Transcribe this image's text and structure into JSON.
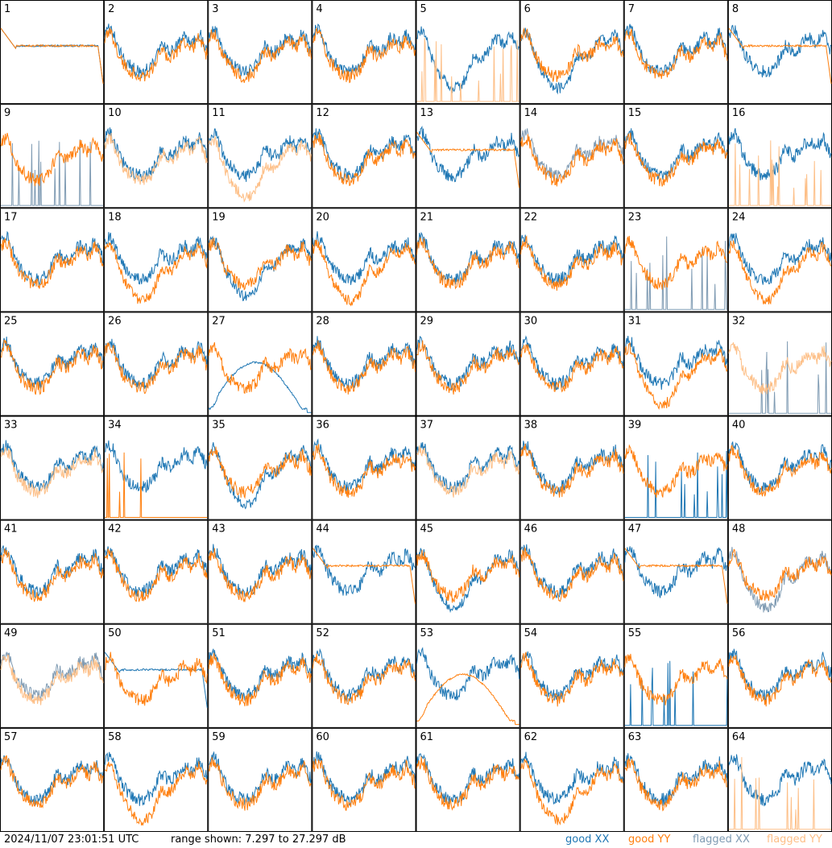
{
  "chart_data": {
    "type": "line",
    "grid": {
      "rows": 8,
      "cols": 8
    },
    "x_range": [
      0,
      1
    ],
    "y_range_db": [
      7.297,
      27.297
    ],
    "colors": {
      "good_xx": "#1f77b4",
      "good_yy": "#ff7f0e",
      "flagged_xx": "#7f9bb3",
      "flagged_yy": "#fdbf87"
    },
    "legend": [
      "good XX",
      "good YY",
      "flagged XX",
      "flagged YY"
    ],
    "panels": [
      {
        "label": "1",
        "xx": "good",
        "yy": "good",
        "xx_shape": "flat",
        "yy_shape": "flat"
      },
      {
        "label": "2",
        "xx": "good",
        "yy": "good",
        "xx_shape": "normal",
        "yy_shape": "normal"
      },
      {
        "label": "3",
        "xx": "good",
        "yy": "good",
        "xx_shape": "normal",
        "yy_shape": "normal"
      },
      {
        "label": "4",
        "xx": "good",
        "yy": "good",
        "xx_shape": "normal",
        "yy_shape": "normal"
      },
      {
        "label": "5",
        "xx": "good",
        "yy": "flagged",
        "xx_shape": "dip",
        "yy_shape": "spikes"
      },
      {
        "label": "6",
        "xx": "good",
        "yy": "good",
        "xx_shape": "dip",
        "yy_shape": "normal"
      },
      {
        "label": "7",
        "xx": "good",
        "yy": "good",
        "xx_shape": "normal",
        "yy_shape": "normal"
      },
      {
        "label": "8",
        "xx": "good",
        "yy": "good",
        "xx_shape": "normal",
        "yy_shape": "flat"
      },
      {
        "label": "9",
        "xx": "flagged",
        "yy": "good",
        "xx_shape": "spikes",
        "yy_shape": "normal"
      },
      {
        "label": "10",
        "xx": "good",
        "yy": "flagged",
        "xx_shape": "normal",
        "yy_shape": "normal"
      },
      {
        "label": "11",
        "xx": "good",
        "yy": "flagged",
        "xx_shape": "normal",
        "yy_shape": "dip"
      },
      {
        "label": "12",
        "xx": "good",
        "yy": "good",
        "xx_shape": "normal",
        "yy_shape": "normal"
      },
      {
        "label": "13",
        "xx": "good",
        "yy": "good",
        "xx_shape": "normal",
        "yy_shape": "flat"
      },
      {
        "label": "14",
        "xx": "flagged",
        "yy": "good",
        "xx_shape": "normal",
        "yy_shape": "normal"
      },
      {
        "label": "15",
        "xx": "good",
        "yy": "good",
        "xx_shape": "normal",
        "yy_shape": "normal"
      },
      {
        "label": "16",
        "xx": "good",
        "yy": "flagged",
        "xx_shape": "normal",
        "yy_shape": "spikes"
      },
      {
        "label": "17",
        "xx": "good",
        "yy": "good",
        "xx_shape": "normal",
        "yy_shape": "normal"
      },
      {
        "label": "18",
        "xx": "good",
        "yy": "good",
        "xx_shape": "normal",
        "yy_shape": "dip"
      },
      {
        "label": "19",
        "xx": "good",
        "yy": "good",
        "xx_shape": "dip",
        "yy_shape": "normal"
      },
      {
        "label": "20",
        "xx": "good",
        "yy": "good",
        "xx_shape": "normal",
        "yy_shape": "dip"
      },
      {
        "label": "21",
        "xx": "good",
        "yy": "good",
        "xx_shape": "normal",
        "yy_shape": "normal"
      },
      {
        "label": "22",
        "xx": "good",
        "yy": "good",
        "xx_shape": "normal",
        "yy_shape": "normal"
      },
      {
        "label": "23",
        "xx": "flagged",
        "yy": "good",
        "xx_shape": "spikes",
        "yy_shape": "normal"
      },
      {
        "label": "24",
        "xx": "good",
        "yy": "good",
        "xx_shape": "normal",
        "yy_shape": "dip"
      },
      {
        "label": "25",
        "xx": "good",
        "yy": "good",
        "xx_shape": "normal",
        "yy_shape": "normal"
      },
      {
        "label": "26",
        "xx": "good",
        "yy": "good",
        "xx_shape": "normal",
        "yy_shape": "normal"
      },
      {
        "label": "27",
        "xx": "good",
        "yy": "good",
        "xx_shape": "hump",
        "yy_shape": "normal"
      },
      {
        "label": "28",
        "xx": "good",
        "yy": "good",
        "xx_shape": "normal",
        "yy_shape": "normal"
      },
      {
        "label": "29",
        "xx": "good",
        "yy": "good",
        "xx_shape": "normal",
        "yy_shape": "normal"
      },
      {
        "label": "30",
        "xx": "good",
        "yy": "good",
        "xx_shape": "normal",
        "yy_shape": "normal"
      },
      {
        "label": "31",
        "xx": "good",
        "yy": "good",
        "xx_shape": "normal",
        "yy_shape": "dip"
      },
      {
        "label": "32",
        "xx": "flagged",
        "yy": "flagged",
        "xx_shape": "spikes",
        "yy_shape": "normal"
      },
      {
        "label": "33",
        "xx": "good",
        "yy": "flagged",
        "xx_shape": "normal",
        "yy_shape": "normal"
      },
      {
        "label": "34",
        "xx": "good",
        "yy": "good",
        "xx_shape": "normal",
        "yy_shape": "spikes"
      },
      {
        "label": "35",
        "xx": "good",
        "yy": "good",
        "xx_shape": "dip",
        "yy_shape": "normal"
      },
      {
        "label": "36",
        "xx": "good",
        "yy": "good",
        "xx_shape": "normal",
        "yy_shape": "normal"
      },
      {
        "label": "37",
        "xx": "good",
        "yy": "flagged",
        "xx_shape": "normal",
        "yy_shape": "normal"
      },
      {
        "label": "38",
        "xx": "good",
        "yy": "good",
        "xx_shape": "normal",
        "yy_shape": "normal"
      },
      {
        "label": "39",
        "xx": "good",
        "yy": "good",
        "xx_shape": "spikes",
        "yy_shape": "normal"
      },
      {
        "label": "40",
        "xx": "good",
        "yy": "good",
        "xx_shape": "normal",
        "yy_shape": "normal"
      },
      {
        "label": "41",
        "xx": "good",
        "yy": "good",
        "xx_shape": "normal",
        "yy_shape": "normal"
      },
      {
        "label": "42",
        "xx": "good",
        "yy": "good",
        "xx_shape": "normal",
        "yy_shape": "normal"
      },
      {
        "label": "43",
        "xx": "good",
        "yy": "good",
        "xx_shape": "normal",
        "yy_shape": "normal"
      },
      {
        "label": "44",
        "xx": "good",
        "yy": "good",
        "xx_shape": "normal",
        "yy_shape": "flat"
      },
      {
        "label": "45",
        "xx": "good",
        "yy": "good",
        "xx_shape": "dip",
        "yy_shape": "normal"
      },
      {
        "label": "46",
        "xx": "good",
        "yy": "good",
        "xx_shape": "normal",
        "yy_shape": "normal"
      },
      {
        "label": "47",
        "xx": "good",
        "yy": "good",
        "xx_shape": "normal",
        "yy_shape": "flat"
      },
      {
        "label": "48",
        "xx": "flagged",
        "yy": "good",
        "xx_shape": "dip",
        "yy_shape": "normal"
      },
      {
        "label": "49",
        "xx": "flagged",
        "yy": "flagged",
        "xx_shape": "normal",
        "yy_shape": "normal"
      },
      {
        "label": "50",
        "xx": "good",
        "yy": "good",
        "xx_shape": "flat",
        "yy_shape": "normal"
      },
      {
        "label": "51",
        "xx": "good",
        "yy": "good",
        "xx_shape": "normal",
        "yy_shape": "normal"
      },
      {
        "label": "52",
        "xx": "good",
        "yy": "good",
        "xx_shape": "normal",
        "yy_shape": "normal"
      },
      {
        "label": "53",
        "xx": "good",
        "yy": "good",
        "xx_shape": "normal",
        "yy_shape": "hump"
      },
      {
        "label": "54",
        "xx": "good",
        "yy": "good",
        "xx_shape": "normal",
        "yy_shape": "normal"
      },
      {
        "label": "55",
        "xx": "good",
        "yy": "good",
        "xx_shape": "spikes",
        "yy_shape": "normal"
      },
      {
        "label": "56",
        "xx": "good",
        "yy": "good",
        "xx_shape": "normal",
        "yy_shape": "normal"
      },
      {
        "label": "57",
        "xx": "good",
        "yy": "good",
        "xx_shape": "normal",
        "yy_shape": "normal"
      },
      {
        "label": "58",
        "xx": "good",
        "yy": "good",
        "xx_shape": "normal",
        "yy_shape": "dip"
      },
      {
        "label": "59",
        "xx": "good",
        "yy": "good",
        "xx_shape": "normal",
        "yy_shape": "normal"
      },
      {
        "label": "60",
        "xx": "good",
        "yy": "good",
        "xx_shape": "normal",
        "yy_shape": "normal"
      },
      {
        "label": "61",
        "xx": "good",
        "yy": "good",
        "xx_shape": "normal",
        "yy_shape": "normal"
      },
      {
        "label": "62",
        "xx": "good",
        "yy": "good",
        "xx_shape": "normal",
        "yy_shape": "dip"
      },
      {
        "label": "63",
        "xx": "good",
        "yy": "good",
        "xx_shape": "normal",
        "yy_shape": "normal"
      },
      {
        "label": "64",
        "xx": "good",
        "yy": "flagged",
        "xx_shape": "normal",
        "yy_shape": "spikes"
      }
    ]
  },
  "footer": {
    "timestamp": "2024/11/07 23:01:51 UTC",
    "range_text": "range shown: 7.297 to 27.297 dB"
  },
  "legend": {
    "good_xx": "good XX",
    "good_yy": "good YY",
    "flagged_xx": "flagged XX",
    "flagged_yy": "flagged YY"
  }
}
